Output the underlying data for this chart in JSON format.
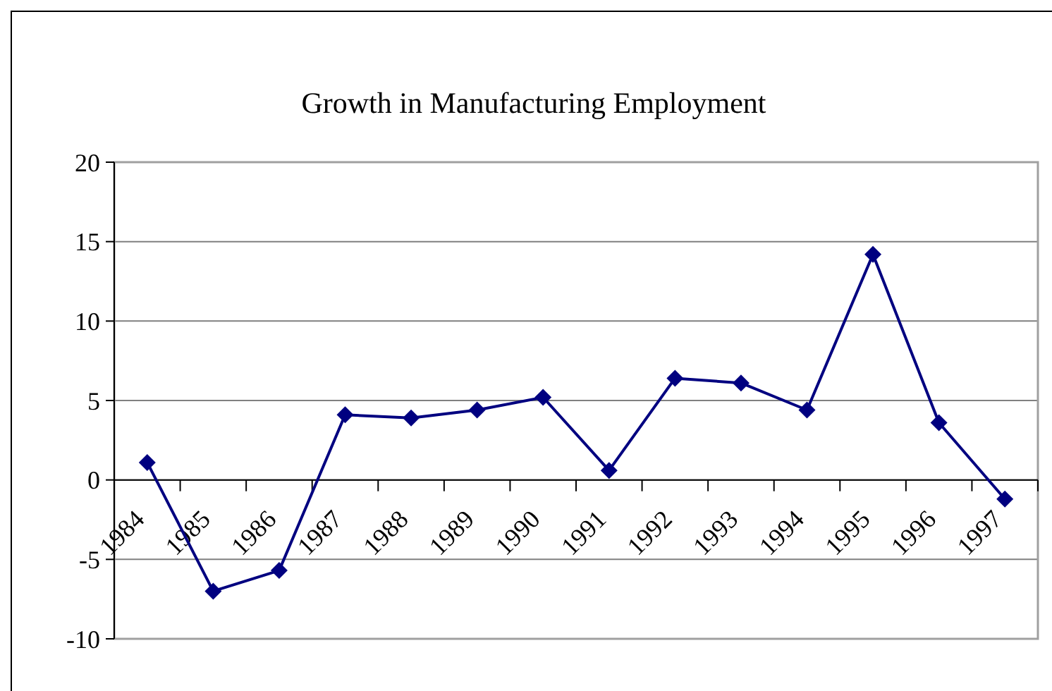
{
  "chart_data": {
    "type": "line",
    "title": "Growth in Manufacturing Employment",
    "categories": [
      "1984",
      "1985",
      "1986",
      "1987",
      "1988",
      "1989",
      "1990",
      "1991",
      "1992",
      "1993",
      "1994",
      "1995",
      "1996",
      "1997"
    ],
    "series": [
      {
        "color": "#000080",
        "values": [
          1.1,
          -7.0,
          -5.7,
          4.1,
          3.9,
          4.4,
          5.2,
          0.6,
          6.4,
          6.1,
          4.4,
          14.2,
          3.6,
          -1.2
        ]
      }
    ],
    "ylim": [
      -10,
      20
    ],
    "yticks": [
      -10,
      -5,
      0,
      5,
      10,
      15,
      20
    ],
    "grid": "y",
    "marker": "diamond",
    "line_style": "solid"
  }
}
